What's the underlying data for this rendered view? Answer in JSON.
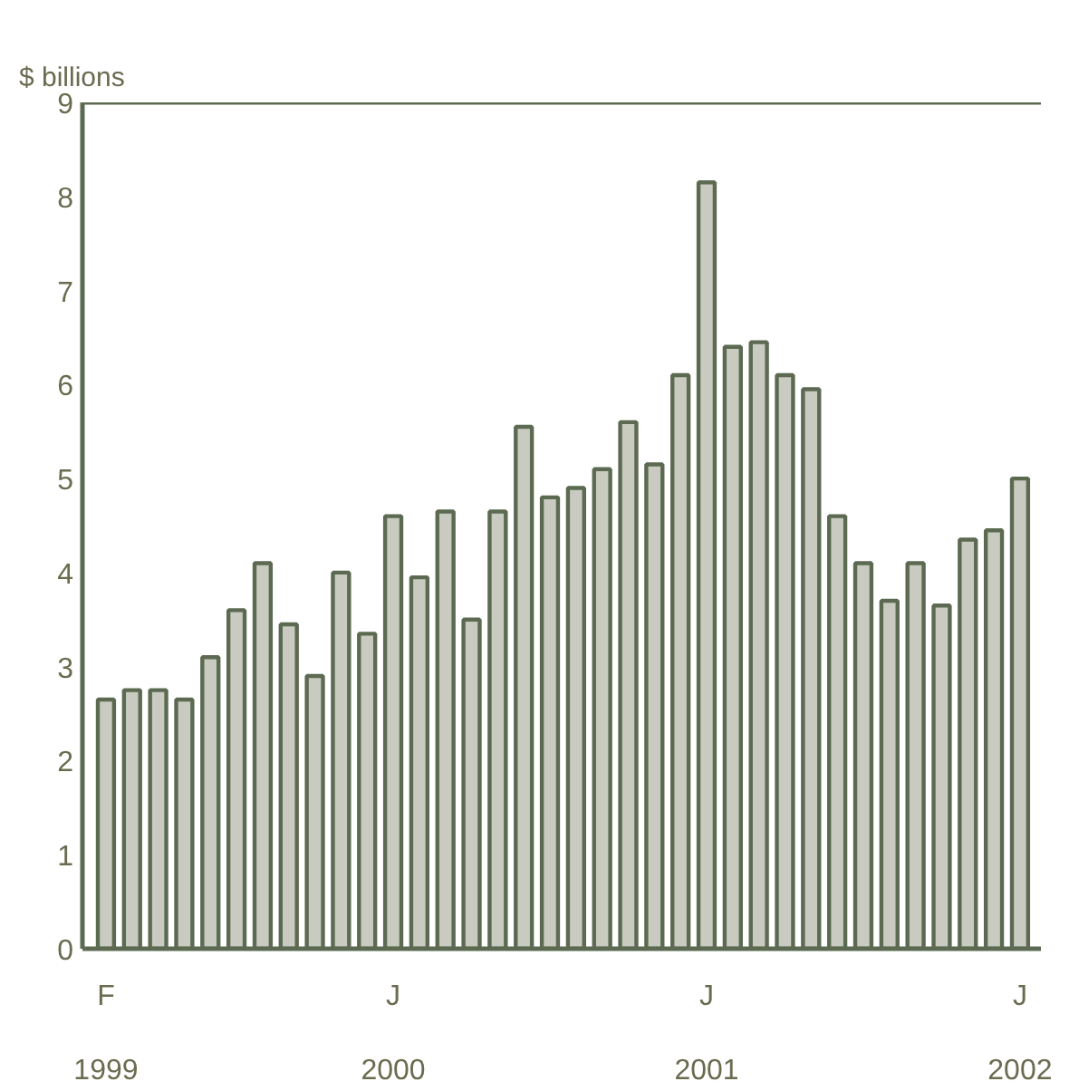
{
  "chart_data": {
    "type": "bar",
    "ylabel": "$ billions",
    "categories": [
      "F\n\n1999",
      null,
      null,
      null,
      null,
      null,
      null,
      null,
      null,
      null,
      null,
      "J\n\n2000",
      null,
      null,
      null,
      null,
      null,
      null,
      null,
      null,
      null,
      null,
      null,
      "J\n\n2001",
      null,
      null,
      null,
      null,
      null,
      null,
      null,
      null,
      null,
      null,
      null,
      "J\n\n2002"
    ],
    "values": [
      2.65,
      2.75,
      2.75,
      2.65,
      3.1,
      3.6,
      4.1,
      3.45,
      2.9,
      4.0,
      3.35,
      4.6,
      3.95,
      4.65,
      3.5,
      4.65,
      5.55,
      4.8,
      4.9,
      5.1,
      5.6,
      5.15,
      6.1,
      8.15,
      6.4,
      6.45,
      6.1,
      5.95,
      4.6,
      4.1,
      3.7,
      4.1,
      3.65,
      4.35,
      4.45,
      5.0
    ],
    "color": "#c9cbc0",
    "ylim": [
      0,
      9
    ],
    "yticks": [
      0,
      1,
      2,
      3,
      4,
      5,
      6,
      7,
      8,
      9
    ],
    "grid": false
  }
}
